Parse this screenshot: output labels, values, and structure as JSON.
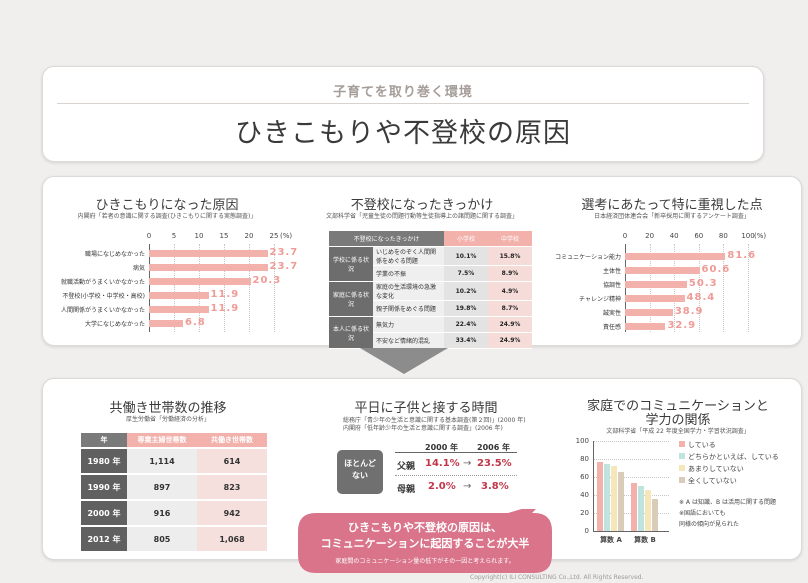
{
  "header": {
    "subtitle": "子育てを取り巻く環境",
    "title": "ひきこもりや不登校の原因"
  },
  "colors": {
    "accent": "#f2b1ab",
    "value_text": "#ef9b96",
    "bubble": "#d9748a",
    "highlight": "#c2364a"
  },
  "chart_data": [
    {
      "type": "bar",
      "title": "ひきこもりになった原因",
      "source": "内閣府「若者の意識に関する調査(ひきこもりに関する実態調査)」",
      "unit": "(%)",
      "ticks": [
        "0",
        "5",
        "10",
        "15",
        "20",
        "25"
      ],
      "xlim": [
        0,
        25
      ],
      "categories": [
        "職場になじめなかった",
        "病気",
        "就職活動がうまくいかなかった",
        "不登校(小学校・中学校・高校)",
        "人間関係がうまくいかなかった",
        "大学になじめなかった"
      ],
      "values": [
        23.7,
        23.7,
        20.3,
        11.9,
        11.9,
        6.8
      ],
      "value_labels": [
        "23.7",
        "23.7",
        "20.3",
        "11.9",
        "11.9",
        "6.8"
      ]
    },
    {
      "type": "table",
      "title": "不登校になったきっかけ",
      "source": "文部科学省「児童生徒の問題行動等生徒指導上の諸問題に関する調査」",
      "columns": [
        "不登校になったきっかけ",
        "小学校",
        "中学校"
      ],
      "groups": [
        {
          "name": "学校に係る状況",
          "rows": [
            {
              "label": "いじめをのぞく人間関係をめぐる問題",
              "elem": "10.1%",
              "jh": "15.8%"
            },
            {
              "label": "学業の不振",
              "elem": "7.5%",
              "jh": "8.9%"
            }
          ]
        },
        {
          "name": "家庭に係る状況",
          "rows": [
            {
              "label": "家庭の生活環境の急激な変化",
              "elem": "10.2%",
              "jh": "4.9%"
            },
            {
              "label": "親子関係をめぐる問題",
              "elem": "19.8%",
              "jh": "8.7%"
            }
          ]
        },
        {
          "name": "本人に係る状況",
          "rows": [
            {
              "label": "無気力",
              "elem": "22.4%",
              "jh": "24.9%"
            },
            {
              "label": "不安など情緒的混乱",
              "elem": "33.4%",
              "jh": "24.9%"
            }
          ]
        }
      ]
    },
    {
      "type": "bar",
      "title": "選考にあたって特に重視した点",
      "source": "日本経済団体連合会「新卒採用に関するアンケート調査」",
      "unit": "(%)",
      "ticks": [
        "0",
        "20",
        "40",
        "60",
        "80",
        "100"
      ],
      "xlim": [
        0,
        100
      ],
      "categories": [
        "コミュニケーション能力",
        "主体性",
        "協調性",
        "チャレンジ精神",
        "誠実性",
        "責任感"
      ],
      "values": [
        81.6,
        60.6,
        50.3,
        48.4,
        38.9,
        32.9
      ],
      "value_labels": [
        "81.6",
        "60.6",
        "50.3",
        "48.4",
        "38.9",
        "32.9"
      ]
    },
    {
      "type": "table",
      "title": "共働き世帯数の推移",
      "source": "厚生労働省「労働経済の分析」",
      "columns": [
        "年",
        "専業主婦世帯数",
        "共働き世帯数"
      ],
      "rows": [
        [
          "1980 年",
          "1,114",
          "614"
        ],
        [
          "1990 年",
          "897",
          "823"
        ],
        [
          "2000 年",
          "916",
          "942"
        ],
        [
          "2012 年",
          "805",
          "1,068"
        ]
      ]
    },
    {
      "type": "table",
      "title": "平日に子供と接する時間",
      "source_lines": [
        "総務庁「青少年の生活と意識に関する基本調査(第２回)」(2000 年)",
        "内閣府「低年齢少年の生活と意識に関する調査」(2006 年)"
      ],
      "row_header": "ほとんど\nない",
      "columns": [
        "2000 年",
        "2006 年"
      ],
      "rows": [
        {
          "label": "父親",
          "v2000": "14.1%",
          "v2006": "23.5%"
        },
        {
          "label": "母親",
          "v2000": "2.0%",
          "v2006": "3.8%"
        }
      ],
      "arrow": "→"
    },
    {
      "type": "bar",
      "title": "家庭でのコミュニケーションと学力の関係",
      "source": "文部科学省「平成 22 年度全国学力・学習状況調査」",
      "ylim": [
        0,
        100
      ],
      "ticks": [
        "0",
        "20",
        "40",
        "60",
        "80",
        "100"
      ],
      "categories": [
        "算数 A",
        "算数 B"
      ],
      "series": [
        {
          "name": "している",
          "color": "#f2b1ab",
          "values": [
            77,
            53
          ]
        },
        {
          "name": "どちらかといえば、している",
          "color": "#bfe3df",
          "values": [
            75,
            50
          ]
        },
        {
          "name": "あまりしていない",
          "color": "#f5e7b9",
          "values": [
            72,
            46
          ]
        },
        {
          "name": "全くしていない",
          "color": "#d9cdb9",
          "values": [
            66,
            36
          ]
        }
      ],
      "notes": [
        "※ A は知識、B は活用に関する問題",
        "※国語においても",
        "同様の傾向が見られた"
      ]
    }
  ],
  "callout": {
    "line1": "ひきこもりや不登校の原因は、",
    "line2": "コミュニケーションに起因することが大半",
    "line3": "家庭間のコミュニケーション量の低下がその一因と考えられます。"
  },
  "footer": {
    "copyright": "Copyright(c) ILI CONSULTING Co.,Ltd. All Rights Reserved."
  }
}
